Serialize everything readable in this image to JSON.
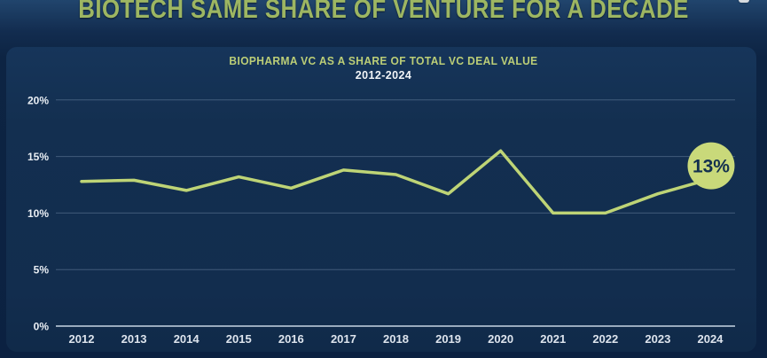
{
  "page": {
    "title": "BIOTECH SAME SHARE OF VENTURE FOR A DECADE"
  },
  "chart_data": {
    "type": "line",
    "title": "BIOPHARMA VC AS A SHARE OF TOTAL VC DEAL VALUE",
    "subtitle": "2012-2024",
    "x": [
      2012,
      2013,
      2014,
      2015,
      2016,
      2017,
      2018,
      2019,
      2020,
      2021,
      2022,
      2023,
      2024
    ],
    "series": [
      {
        "name": "Biopharma VC share of total VC deal value (%)",
        "values": [
          12.8,
          12.9,
          12.0,
          13.2,
          12.2,
          13.8,
          13.4,
          11.7,
          15.5,
          10.0,
          10.0,
          11.7,
          13.0
        ]
      }
    ],
    "ylim": [
      0,
      20
    ],
    "yticks": [
      0,
      5,
      10,
      15,
      20
    ],
    "ytick_labels": [
      "0%",
      "5%",
      "10%",
      "15%",
      "20%"
    ],
    "grid": true,
    "legend": "none",
    "end_label": "13%"
  },
  "colors": {
    "title_text": "#9db662",
    "chart_title_text": "#bcce77",
    "subtitle_text": "#f2f5f8",
    "line": "#bed476",
    "badge_fill": "#c9d97a",
    "badge_text": "#13304f",
    "axis_text": "#e9eef4",
    "axis_line": "#9aabbe",
    "gridline": "rgba(173,196,221,0.30)",
    "background_outer": "#0d2443",
    "background_panel": "#13304f"
  }
}
